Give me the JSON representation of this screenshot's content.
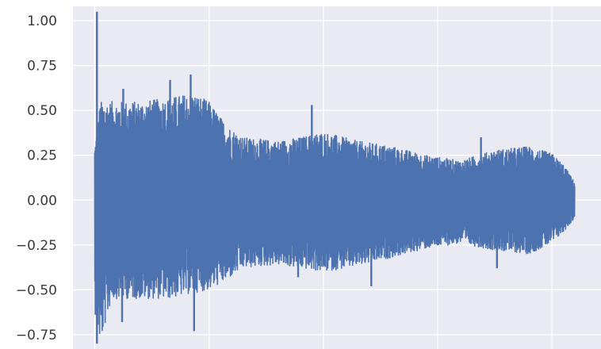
{
  "chart_data": {
    "type": "line",
    "title": "",
    "xlabel": "",
    "ylabel": "",
    "ylim": [
      -0.83,
      1.08
    ],
    "grid": true,
    "y_ticks": [
      1.0,
      0.75,
      0.5,
      0.25,
      0.0,
      -0.25,
      -0.5,
      -0.75
    ],
    "y_tick_labels": [
      "1.00",
      "0.75",
      "0.50",
      "0.25",
      "0.00",
      "−0.25",
      "−0.50",
      "−0.75"
    ],
    "x_gridlines": [
      0,
      1,
      2,
      3,
      4
    ],
    "x_tick_labels": [],
    "series": [
      {
        "color": "#4c72b0",
        "description": "waveform",
        "envelope": [
          {
            "x": 0.0,
            "upper": 0.3,
            "lower": -0.62
          },
          {
            "x": 0.05,
            "upper": 0.55,
            "lower": -0.8
          },
          {
            "x": 0.15,
            "upper": 0.55,
            "lower": -0.55
          },
          {
            "x": 0.4,
            "upper": 0.55,
            "lower": -0.55
          },
          {
            "x": 0.65,
            "upper": 0.57,
            "lower": -0.55
          },
          {
            "x": 0.85,
            "upper": 0.6,
            "lower": -0.52
          },
          {
            "x": 1.0,
            "upper": 0.55,
            "lower": -0.5
          },
          {
            "x": 1.15,
            "upper": 0.42,
            "lower": -0.45
          },
          {
            "x": 1.3,
            "upper": 0.35,
            "lower": -0.38
          },
          {
            "x": 1.6,
            "upper": 0.33,
            "lower": -0.36
          },
          {
            "x": 1.8,
            "upper": 0.35,
            "lower": -0.38
          },
          {
            "x": 2.0,
            "upper": 0.38,
            "lower": -0.4
          },
          {
            "x": 2.3,
            "upper": 0.33,
            "lower": -0.37
          },
          {
            "x": 2.6,
            "upper": 0.3,
            "lower": -0.32
          },
          {
            "x": 2.9,
            "upper": 0.25,
            "lower": -0.27
          },
          {
            "x": 3.2,
            "upper": 0.22,
            "lower": -0.24
          },
          {
            "x": 3.5,
            "upper": 0.28,
            "lower": -0.28
          },
          {
            "x": 3.8,
            "upper": 0.3,
            "lower": -0.3
          },
          {
            "x": 4.0,
            "upper": 0.26,
            "lower": -0.24
          },
          {
            "x": 4.1,
            "upper": 0.2,
            "lower": -0.18
          },
          {
            "x": 4.2,
            "upper": 0.1,
            "lower": -0.1
          }
        ],
        "spikes": [
          {
            "x": 0.02,
            "y": 1.05
          },
          {
            "x": 0.02,
            "y": -0.8
          },
          {
            "x": 0.25,
            "y": 0.62
          },
          {
            "x": 0.24,
            "y": -0.68
          },
          {
            "x": 0.66,
            "y": 0.67
          },
          {
            "x": 0.84,
            "y": 0.7
          },
          {
            "x": 0.87,
            "y": -0.73
          },
          {
            "x": 1.9,
            "y": 0.53
          },
          {
            "x": 1.78,
            "y": -0.43
          },
          {
            "x": 2.42,
            "y": -0.48
          },
          {
            "x": 3.38,
            "y": 0.35
          },
          {
            "x": 3.52,
            "y": -0.38
          }
        ]
      }
    ]
  }
}
